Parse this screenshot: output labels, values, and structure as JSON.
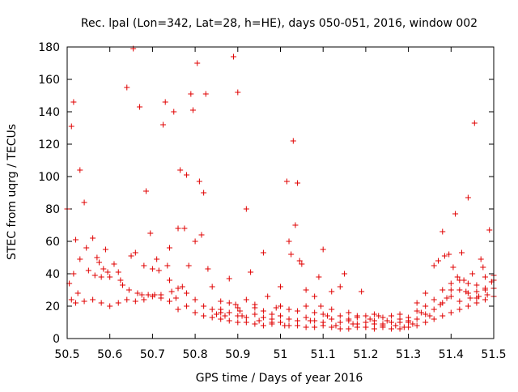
{
  "chart_data": {
    "type": "scatter",
    "title": "Rec. lpal (Lon=342, Lat=28, h=HE), days 050-051, 2016, window 002",
    "xlabel": "GPS time / Days of year 2016",
    "ylabel": "STEC from uqrg / TECUs",
    "xlim": [
      50.5,
      51.5
    ],
    "ylim": [
      0,
      180
    ],
    "xticks": [
      50.5,
      50.6,
      50.7,
      50.8,
      50.9,
      51,
      51.1,
      51.2,
      51.3,
      51.4,
      51.5
    ],
    "xtick_labels": [
      "50.5",
      "50.6",
      "50.7",
      "50.8",
      "50.9",
      "51",
      "51.1",
      "51.2",
      "51.3",
      "51.4",
      "51.5"
    ],
    "yticks": [
      0,
      20,
      40,
      60,
      80,
      100,
      120,
      140,
      160,
      180
    ],
    "ytick_labels": [
      "0",
      "20",
      "40",
      "60",
      "80",
      "100",
      "120",
      "140",
      "160",
      "180"
    ],
    "grid": false,
    "legend": "none",
    "marker": "plus",
    "color": "#e00000",
    "points": [
      [
        50.5,
        80
      ],
      [
        50.505,
        34
      ],
      [
        50.51,
        24
      ],
      [
        50.515,
        40
      ],
      [
        50.52,
        61
      ],
      [
        50.525,
        28
      ],
      [
        50.53,
        49
      ],
      [
        50.51,
        131
      ],
      [
        50.515,
        146
      ],
      [
        50.53,
        104
      ],
      [
        50.54,
        84
      ],
      [
        50.545,
        56
      ],
      [
        50.55,
        42
      ],
      [
        50.56,
        62
      ],
      [
        50.565,
        39
      ],
      [
        50.57,
        50
      ],
      [
        50.575,
        47
      ],
      [
        50.58,
        38
      ],
      [
        50.585,
        43
      ],
      [
        50.59,
        55
      ],
      [
        50.595,
        41
      ],
      [
        50.6,
        38
      ],
      [
        50.61,
        46
      ],
      [
        50.62,
        41
      ],
      [
        50.625,
        36
      ],
      [
        50.63,
        33
      ],
      [
        50.64,
        155
      ],
      [
        50.645,
        30
      ],
      [
        50.65,
        51
      ],
      [
        50.655,
        179
      ],
      [
        50.66,
        53
      ],
      [
        50.665,
        28
      ],
      [
        50.67,
        143
      ],
      [
        50.675,
        27
      ],
      [
        50.68,
        45
      ],
      [
        50.685,
        91
      ],
      [
        50.69,
        27
      ],
      [
        50.695,
        65
      ],
      [
        50.7,
        43
      ],
      [
        50.705,
        27
      ],
      [
        50.71,
        49
      ],
      [
        50.715,
        42
      ],
      [
        50.72,
        27
      ],
      [
        50.725,
        132
      ],
      [
        50.73,
        146
      ],
      [
        50.735,
        45
      ],
      [
        50.74,
        56
      ],
      [
        50.745,
        29
      ],
      [
        50.75,
        140
      ],
      [
        50.755,
        25
      ],
      [
        50.76,
        68
      ],
      [
        50.765,
        104
      ],
      [
        50.77,
        32
      ],
      [
        50.775,
        68
      ],
      [
        50.78,
        101
      ],
      [
        50.785,
        45
      ],
      [
        50.79,
        151
      ],
      [
        50.795,
        141
      ],
      [
        50.8,
        60
      ],
      [
        50.805,
        170
      ],
      [
        50.81,
        97
      ],
      [
        50.815,
        64
      ],
      [
        50.82,
        90
      ],
      [
        50.825,
        151
      ],
      [
        50.83,
        43
      ],
      [
        50.84,
        32
      ],
      [
        50.85,
        15
      ],
      [
        50.86,
        23
      ],
      [
        50.87,
        14
      ],
      [
        50.88,
        37
      ],
      [
        50.89,
        174
      ],
      [
        50.895,
        21
      ],
      [
        50.9,
        152
      ],
      [
        50.905,
        17
      ],
      [
        50.91,
        14
      ],
      [
        50.92,
        80
      ],
      [
        50.93,
        41
      ],
      [
        50.94,
        19
      ],
      [
        50.95,
        11
      ],
      [
        50.96,
        53
      ],
      [
        50.97,
        26
      ],
      [
        50.98,
        10
      ],
      [
        50.99,
        19
      ],
      [
        51.0,
        32
      ],
      [
        51.01,
        8
      ],
      [
        51.015,
        97
      ],
      [
        51.02,
        60
      ],
      [
        51.025,
        52
      ],
      [
        51.03,
        122
      ],
      [
        51.035,
        70
      ],
      [
        51.04,
        96
      ],
      [
        51.045,
        48
      ],
      [
        51.05,
        46
      ],
      [
        51.06,
        30
      ],
      [
        51.07,
        11
      ],
      [
        51.08,
        26
      ],
      [
        51.09,
        38
      ],
      [
        51.095,
        20
      ],
      [
        51.1,
        55
      ],
      [
        51.11,
        14
      ],
      [
        51.12,
        29
      ],
      [
        51.13,
        8
      ],
      [
        51.14,
        32
      ],
      [
        51.15,
        40
      ],
      [
        51.16,
        12
      ],
      [
        51.17,
        9
      ],
      [
        51.18,
        14
      ],
      [
        51.19,
        29
      ],
      [
        51.2,
        7
      ],
      [
        51.21,
        12
      ],
      [
        51.22,
        9
      ],
      [
        51.23,
        14
      ],
      [
        51.24,
        8
      ],
      [
        51.25,
        11
      ],
      [
        51.26,
        14
      ],
      [
        51.27,
        8
      ],
      [
        51.28,
        10
      ],
      [
        51.29,
        7
      ],
      [
        51.3,
        11
      ],
      [
        51.31,
        9
      ],
      [
        51.32,
        22
      ],
      [
        51.33,
        16
      ],
      [
        51.34,
        28
      ],
      [
        51.35,
        14
      ],
      [
        51.36,
        45
      ],
      [
        51.37,
        48
      ],
      [
        51.375,
        21
      ],
      [
        51.38,
        66
      ],
      [
        51.385,
        51
      ],
      [
        51.39,
        25
      ],
      [
        51.395,
        52
      ],
      [
        51.4,
        30
      ],
      [
        51.405,
        44
      ],
      [
        51.41,
        77
      ],
      [
        51.415,
        38
      ],
      [
        51.42,
        23
      ],
      [
        51.425,
        53
      ],
      [
        51.43,
        36
      ],
      [
        51.435,
        29
      ],
      [
        51.44,
        87
      ],
      [
        51.445,
        25
      ],
      [
        51.45,
        40
      ],
      [
        51.455,
        133
      ],
      [
        51.46,
        33
      ],
      [
        51.465,
        26
      ],
      [
        51.47,
        49
      ],
      [
        51.475,
        44
      ],
      [
        51.48,
        30
      ],
      [
        51.485,
        27
      ],
      [
        51.49,
        67
      ],
      [
        51.495,
        35
      ],
      [
        51.5,
        36
      ],
      [
        50.52,
        22
      ],
      [
        50.54,
        23
      ],
      [
        50.56,
        24
      ],
      [
        50.58,
        22
      ],
      [
        50.6,
        20
      ],
      [
        50.62,
        22
      ],
      [
        50.64,
        24
      ],
      [
        50.66,
        23
      ],
      [
        50.68,
        24
      ],
      [
        50.7,
        26
      ],
      [
        50.72,
        25
      ],
      [
        50.74,
        23
      ],
      [
        50.76,
        18
      ],
      [
        50.78,
        20
      ],
      [
        50.8,
        16
      ],
      [
        50.82,
        14
      ],
      [
        50.84,
        13
      ],
      [
        50.86,
        12
      ],
      [
        50.88,
        11
      ],
      [
        50.9,
        10
      ],
      [
        50.92,
        10
      ],
      [
        50.94,
        9
      ],
      [
        50.96,
        8
      ],
      [
        50.98,
        9
      ],
      [
        51.0,
        10
      ],
      [
        51.02,
        8
      ],
      [
        51.04,
        8
      ],
      [
        51.06,
        7
      ],
      [
        51.08,
        7
      ],
      [
        51.1,
        8
      ],
      [
        51.12,
        7
      ],
      [
        51.14,
        6
      ],
      [
        51.16,
        6
      ],
      [
        51.18,
        7
      ],
      [
        51.2,
        7
      ],
      [
        51.22,
        6
      ],
      [
        51.24,
        7
      ],
      [
        51.26,
        6
      ],
      [
        51.28,
        6
      ],
      [
        51.3,
        7
      ],
      [
        51.32,
        8
      ],
      [
        51.34,
        10
      ],
      [
        51.36,
        12
      ],
      [
        51.38,
        14
      ],
      [
        51.4,
        16
      ],
      [
        51.42,
        18
      ],
      [
        51.44,
        20
      ],
      [
        51.46,
        22
      ],
      [
        51.48,
        24
      ],
      [
        51.5,
        26
      ],
      [
        50.86,
        18
      ],
      [
        50.88,
        16
      ],
      [
        50.9,
        14
      ],
      [
        50.92,
        13
      ],
      [
        50.94,
        15
      ],
      [
        50.96,
        13
      ],
      [
        50.98,
        12
      ],
      [
        51.0,
        14
      ],
      [
        51.02,
        12
      ],
      [
        51.04,
        11
      ],
      [
        51.06,
        13
      ],
      [
        51.08,
        11
      ],
      [
        51.1,
        10
      ],
      [
        51.12,
        12
      ],
      [
        51.14,
        10
      ],
      [
        51.16,
        11
      ],
      [
        51.18,
        9
      ],
      [
        51.2,
        10
      ],
      [
        51.22,
        11
      ],
      [
        51.24,
        9
      ],
      [
        51.26,
        10
      ],
      [
        51.28,
        12
      ],
      [
        51.3,
        10
      ],
      [
        51.32,
        12
      ],
      [
        51.34,
        15
      ],
      [
        51.36,
        18
      ],
      [
        51.38,
        22
      ],
      [
        51.4,
        26
      ],
      [
        51.42,
        30
      ],
      [
        51.44,
        28
      ],
      [
        51.46,
        25
      ],
      [
        51.48,
        31
      ],
      [
        51.5,
        31
      ],
      [
        50.74,
        36
      ],
      [
        50.76,
        31
      ],
      [
        50.78,
        28
      ],
      [
        50.8,
        24
      ],
      [
        50.82,
        20
      ],
      [
        50.84,
        18
      ],
      [
        50.86,
        16
      ],
      [
        50.88,
        22
      ],
      [
        50.9,
        19
      ],
      [
        50.92,
        24
      ],
      [
        50.94,
        21
      ],
      [
        50.96,
        17
      ],
      [
        50.98,
        15
      ],
      [
        51.0,
        20
      ],
      [
        51.02,
        18
      ],
      [
        51.04,
        17
      ],
      [
        51.06,
        20
      ],
      [
        51.08,
        16
      ],
      [
        51.1,
        15
      ],
      [
        51.12,
        18
      ],
      [
        51.14,
        14
      ],
      [
        51.16,
        16
      ],
      [
        51.18,
        13
      ],
      [
        51.2,
        14
      ],
      [
        51.22,
        15
      ],
      [
        51.24,
        13
      ],
      [
        51.26,
        14
      ],
      [
        51.28,
        15
      ],
      [
        51.3,
        13
      ],
      [
        51.32,
        17
      ],
      [
        51.34,
        20
      ],
      [
        51.36,
        24
      ],
      [
        51.38,
        30
      ],
      [
        51.4,
        34
      ],
      [
        51.42,
        36
      ],
      [
        51.44,
        34
      ],
      [
        51.46,
        29
      ],
      [
        51.48,
        38
      ],
      [
        51.5,
        39
      ]
    ]
  }
}
